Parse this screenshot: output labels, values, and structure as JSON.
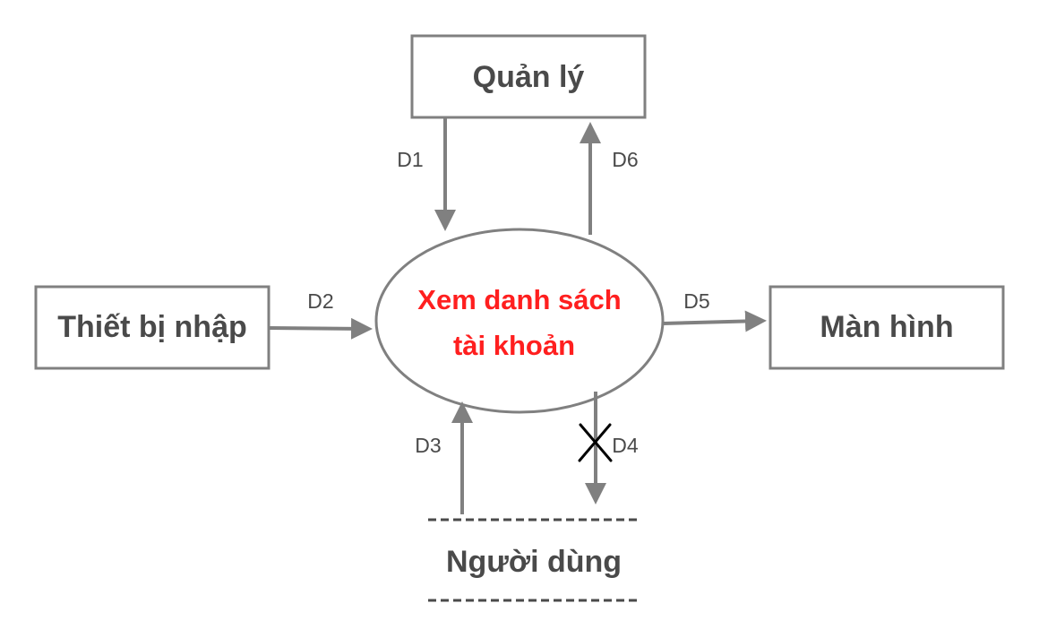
{
  "colors": {
    "entity_border": "#808080",
    "entity_text": "#4a4a4a",
    "process_text": "#ff1f1f",
    "arrow": "#808080",
    "cross_mark": "#000000"
  },
  "entities": {
    "manager": "Quản lý",
    "input_device": "Thiết bị nhập",
    "display": "Màn hình",
    "data_store": "Người dùng"
  },
  "process": {
    "line1": "Xem danh sách",
    "line2": "tài khoản"
  },
  "flows": {
    "d1": "D1",
    "d2": "D2",
    "d3": "D3",
    "d4": "D4",
    "d5": "D5",
    "d6": "D6"
  },
  "d4_crossed_out": true
}
